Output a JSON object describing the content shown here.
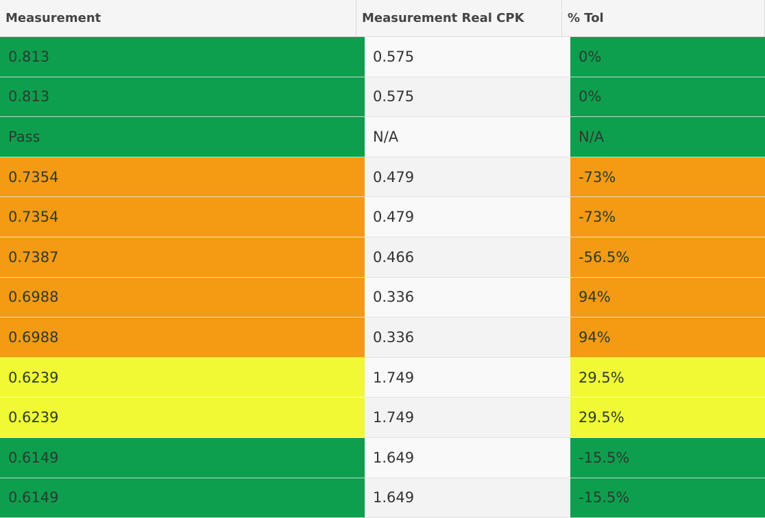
{
  "table": {
    "headers": [
      "Measurement",
      "Measurement Real CPK",
      "% Tol"
    ],
    "rows": [
      {
        "color": "#0e9f4e",
        "cells": [
          "0.813",
          "0.575",
          "0%"
        ]
      },
      {
        "color": "#0e9f4e",
        "cells": [
          "0.813",
          "0.575",
          "0%"
        ]
      },
      {
        "color": "#0e9f4e",
        "cells": [
          "Pass",
          "N/A",
          "N/A"
        ]
      },
      {
        "color": "#f49b13",
        "cells": [
          "0.7354",
          "0.479",
          "-73%"
        ]
      },
      {
        "color": "#f49b13",
        "cells": [
          "0.7354",
          "0.479",
          "-73%"
        ]
      },
      {
        "color": "#f49b13",
        "cells": [
          "0.7387",
          "0.466",
          "-56.5%"
        ]
      },
      {
        "color": "#f49b13",
        "cells": [
          "0.6988",
          "0.336",
          "94%"
        ]
      },
      {
        "color": "#f49b13",
        "cells": [
          "0.6988",
          "0.336",
          "94%"
        ]
      },
      {
        "color": "#f0f933",
        "cells": [
          "0.6239",
          "1.749",
          "29.5%"
        ]
      },
      {
        "color": "#f0f933",
        "cells": [
          "0.6239",
          "1.749",
          "29.5%"
        ]
      },
      {
        "color": "#0e9f4e",
        "cells": [
          "0.6149",
          "1.649",
          "-15.5%"
        ]
      },
      {
        "color": "#0e9f4e",
        "cells": [
          "0.6149",
          "1.649",
          "-15.5%"
        ]
      }
    ]
  }
}
